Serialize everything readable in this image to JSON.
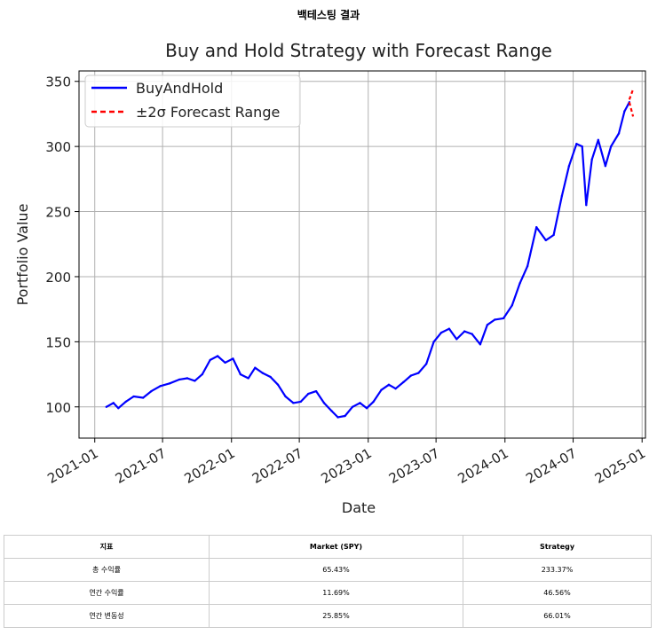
{
  "page": {
    "heading": "백테스팅 결과"
  },
  "chart_data": {
    "type": "line",
    "title": "Buy and Hold Strategy with Forecast Range",
    "xlabel": "Date",
    "ylabel": "Portfolio Value",
    "xlim": [
      "2020-11-20",
      "2025-01-10"
    ],
    "ylim": [
      76,
      358
    ],
    "xticks": [
      "2021-01",
      "2021-07",
      "2022-01",
      "2022-07",
      "2023-01",
      "2023-07",
      "2024-01",
      "2024-07",
      "2025-01"
    ],
    "yticks": [
      100,
      150,
      200,
      250,
      300,
      350
    ],
    "grid": true,
    "legend_position": "top-left",
    "series": [
      {
        "name": "BuyAndHold",
        "color": "#0000ff",
        "style": "solid",
        "x": [
          "2021-02-01",
          "2021-02-20",
          "2021-03-05",
          "2021-03-25",
          "2021-04-15",
          "2021-05-10",
          "2021-06-01",
          "2021-06-25",
          "2021-07-20",
          "2021-08-15",
          "2021-09-05",
          "2021-09-25",
          "2021-10-15",
          "2021-11-05",
          "2021-11-25",
          "2021-12-15",
          "2022-01-05",
          "2022-01-25",
          "2022-02-15",
          "2022-03-05",
          "2022-03-25",
          "2022-04-15",
          "2022-05-05",
          "2022-05-25",
          "2022-06-15",
          "2022-07-05",
          "2022-07-25",
          "2022-08-15",
          "2022-09-05",
          "2022-09-25",
          "2022-10-12",
          "2022-10-31",
          "2022-11-20",
          "2022-12-10",
          "2022-12-28",
          "2023-01-15",
          "2023-02-05",
          "2023-02-25",
          "2023-03-15",
          "2023-04-05",
          "2023-04-25",
          "2023-05-15",
          "2023-06-05",
          "2023-06-25",
          "2023-07-15",
          "2023-08-05",
          "2023-08-25",
          "2023-09-15",
          "2023-10-05",
          "2023-10-27",
          "2023-11-15",
          "2023-12-05",
          "2023-12-28",
          "2024-01-20",
          "2024-02-10",
          "2024-03-01",
          "2024-03-25",
          "2024-04-19",
          "2024-05-10",
          "2024-06-01",
          "2024-06-20",
          "2024-07-10",
          "2024-07-25",
          "2024-08-05",
          "2024-08-20",
          "2024-09-06",
          "2024-09-25",
          "2024-10-10",
          "2024-10-31",
          "2024-11-15",
          "2024-11-28"
        ],
        "values": [
          100,
          103,
          99,
          104,
          108,
          107,
          112,
          116,
          118,
          121,
          122,
          120,
          125,
          136,
          139,
          134,
          137,
          125,
          122,
          130,
          126,
          123,
          117,
          108,
          103,
          104,
          110,
          112,
          103,
          97,
          92,
          93,
          100,
          103,
          99,
          104,
          113,
          117,
          114,
          119,
          124,
          126,
          133,
          150,
          157,
          160,
          152,
          158,
          156,
          148,
          163,
          167,
          168,
          178,
          195,
          208,
          238,
          228,
          232,
          262,
          285,
          302,
          300,
          255,
          290,
          305,
          285,
          300,
          310,
          327,
          334
        ]
      },
      {
        "name": "±2σ Forecast Range",
        "color": "#ff0000",
        "style": "dashed",
        "x": [
          "2024-11-28",
          "2024-12-08",
          "2024-11-28",
          "2024-12-08"
        ],
        "values": [
          336,
          344,
          334,
          323
        ]
      }
    ]
  },
  "table": {
    "headers": [
      "지표",
      "Market (SPY)",
      "Strategy"
    ],
    "rows": [
      [
        "총 수익률",
        "65.43%",
        "233.37%"
      ],
      [
        "연간 수익률",
        "11.69%",
        "46.56%"
      ],
      [
        "연간 변동성",
        "25.85%",
        "66.01%"
      ]
    ]
  }
}
